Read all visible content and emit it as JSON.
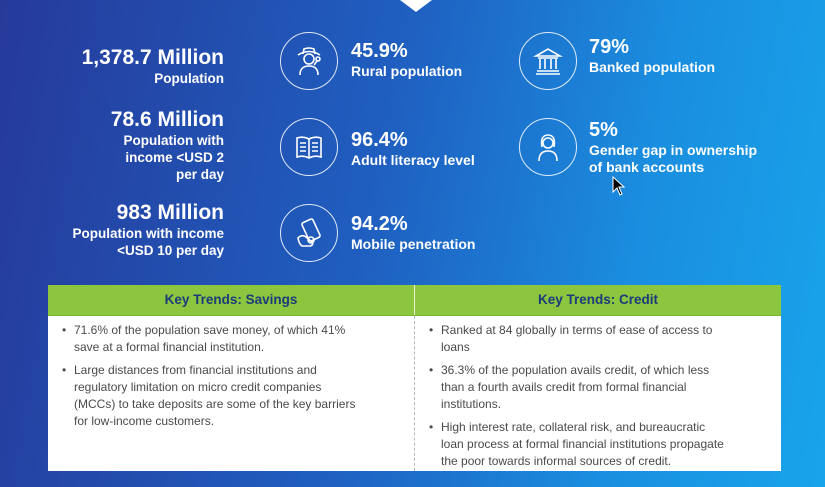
{
  "left_stats": [
    {
      "value": "1,378.7 Million",
      "label_lines": [
        "Population"
      ]
    },
    {
      "value": "78.6 Million",
      "label_lines": [
        "Population with",
        "income <USD 2",
        "per day"
      ]
    },
    {
      "value": "983 Million",
      "label_lines": [
        "Population with income",
        "<USD 10 per day"
      ]
    }
  ],
  "icon_stats": [
    {
      "value": "45.9%",
      "label_lines": [
        "Rural population"
      ],
      "icon": "farmer-icon"
    },
    {
      "value": "96.4%",
      "label_lines": [
        "Adult literacy level"
      ],
      "icon": "book-icon"
    },
    {
      "value": "94.2%",
      "label_lines": [
        "Mobile penetration"
      ],
      "icon": "mobile-payment-icon"
    },
    {
      "value": "79%",
      "label_lines": [
        "Banked population"
      ],
      "icon": "bank-icon"
    },
    {
      "value": "5%",
      "label_lines": [
        "Gender gap in ownership",
        "of bank accounts"
      ],
      "icon": "woman-icon"
    }
  ],
  "trends": {
    "savings": {
      "title": "Key Trends: Savings",
      "bullets": [
        [
          "71.6% of the population save money, of which 41%",
          "save at a formal financial institution."
        ],
        [
          "Large distances from financial institutions and",
          "regulatory limitation on micro credit companies",
          "(MCCs) to take deposits are some of the key barriers",
          "for low-income customers."
        ]
      ]
    },
    "credit": {
      "title": "Key Trends: Credit",
      "bullets": [
        [
          "Ranked at 84 globally in terms of ease of access to",
          "loans"
        ],
        [
          "36.3% of the population avails credit, of which less",
          "than a fourth avails credit from formal financial",
          "institutions."
        ],
        [
          "High interest rate, collateral risk, and bureaucratic",
          "loan process at formal financial institutions propagate",
          "the poor towards informal sources of credit."
        ]
      ]
    }
  },
  "colors": {
    "header_green": "#8cc63f",
    "header_text": "#1f3a7a",
    "bg_start": "#263a9a",
    "bg_end": "#18a4ea"
  }
}
